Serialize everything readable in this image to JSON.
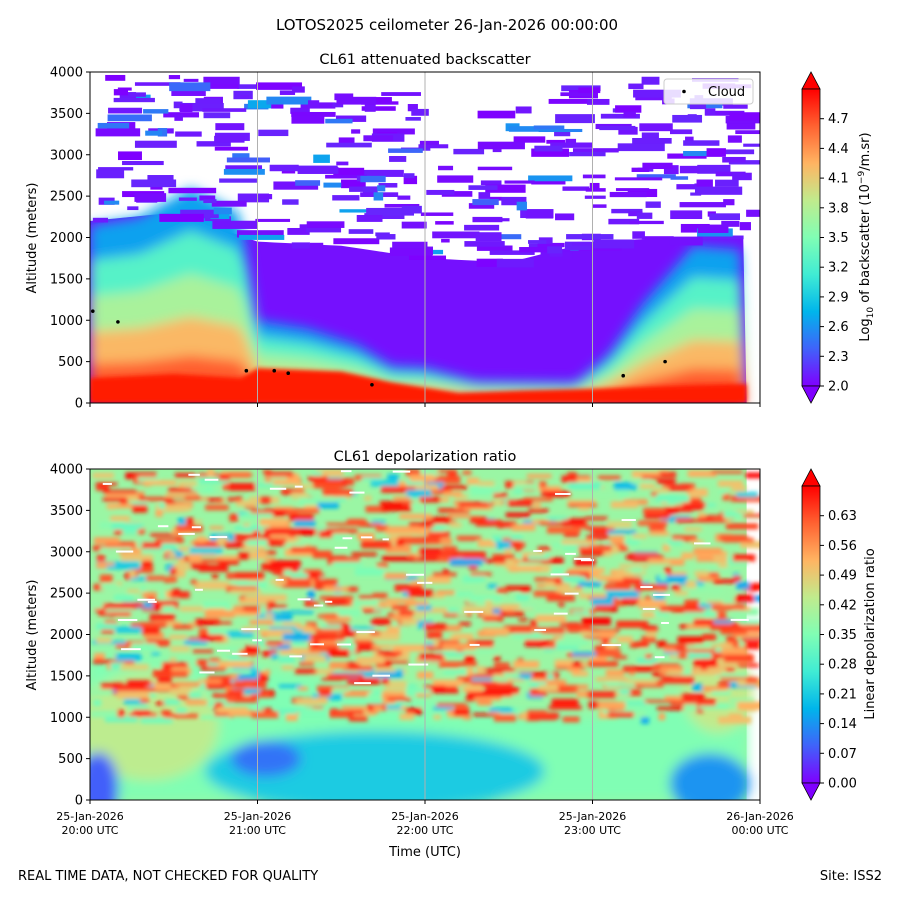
{
  "figure": {
    "suptitle": "LOTOS2025 ceilometer 26-Jan-2026 00:00:00",
    "footer_left": "REAL TIME DATA, NOT CHECKED FOR QUALITY",
    "footer_right": "Site: ISS2"
  },
  "chart_data": [
    {
      "type": "heatmap",
      "title": "CL61 attenuated backscatter",
      "ylabel": "Altitude (meters)",
      "xlabel": "",
      "ylim": [
        0,
        4000
      ],
      "xlim": [
        "25-Jan-2026 20:00 UTC",
        "26-Jan-2026 00:00 UTC"
      ],
      "yticks": [
        0,
        500,
        1000,
        1500,
        2000,
        2500,
        3000,
        3500,
        4000
      ],
      "xticks": [
        "25-Jan-2026 20:00 UTC",
        "25-Jan-2026 21:00 UTC",
        "25-Jan-2026 22:00 UTC",
        "25-Jan-2026 23:00 UTC",
        "26-Jan-2026 00:00 UTC"
      ],
      "vertical_grid": true,
      "colorbar": {
        "label_main": "Log",
        "label_sub": "10",
        "label_rest": " of backscatter (10",
        "label_sup": "−9",
        "label_end": "/m.sr)",
        "vmin": 2.0,
        "vmax": 5.0,
        "ticks": [
          "2.0",
          "2.3",
          "2.6",
          "2.9",
          "3.2",
          "3.5",
          "3.8",
          "4.1",
          "4.4",
          "4.7"
        ],
        "extend": "both",
        "colormap": "rainbow"
      },
      "legend": {
        "position": "top-right",
        "entries": [
          {
            "name": "Cloud",
            "marker": "dot",
            "color": "#000000"
          }
        ]
      },
      "cloud_base_points": [
        {
          "time": "20:01",
          "altitude": 1110
        },
        {
          "time": "20:10",
          "altitude": 980
        },
        {
          "time": "20:56",
          "altitude": 390
        },
        {
          "time": "21:06",
          "altitude": 390
        },
        {
          "time": "21:11",
          "altitude": 360
        },
        {
          "time": "21:41",
          "altitude": 220
        },
        {
          "time": "23:11",
          "altitude": 330
        },
        {
          "time": "23:26",
          "altitude": 500
        }
      ],
      "profile_description_series": [
        {
          "name": "surface_layer_top",
          "times_h": [
            0,
            0.3,
            0.6,
            0.9,
            1.0,
            1.3,
            1.6,
            1.8,
            2.0,
            2.3,
            2.6,
            2.9,
            3.1,
            3.3,
            3.6,
            3.9
          ],
          "altitude": [
            2150,
            2250,
            2600,
            2300,
            1000,
            900,
            700,
            450,
            430,
            270,
            260,
            250,
            600,
            1200,
            1900,
            1850
          ]
        },
        {
          "name": "sky_fill_top",
          "times_h": [
            0,
            0.5,
            1.0,
            1.5,
            2.0,
            2.5,
            3.0,
            3.5,
            3.95
          ],
          "altitude": [
            2200,
            2300,
            1950,
            1900,
            1750,
            1700,
            1950,
            2000,
            2000
          ]
        }
      ]
    },
    {
      "type": "heatmap",
      "title": "CL61 depolarization ratio",
      "ylabel": "Altitude (meters)",
      "xlabel": "Time (UTC)",
      "ylim": [
        0,
        4000
      ],
      "xlim": [
        "25-Jan-2026 20:00 UTC",
        "26-Jan-2026 00:00 UTC"
      ],
      "yticks": [
        0,
        500,
        1000,
        1500,
        2000,
        2500,
        3000,
        3500,
        4000
      ],
      "xticks": [
        "25-Jan-2026 20:00 UTC",
        "25-Jan-2026 21:00 UTC",
        "25-Jan-2026 22:00 UTC",
        "25-Jan-2026 23:00 UTC",
        "26-Jan-2026 00:00 UTC"
      ],
      "xtick_labels": [
        [
          "25-Jan-2026",
          "20:00 UTC"
        ],
        [
          "25-Jan-2026",
          "21:00 UTC"
        ],
        [
          "25-Jan-2026",
          "22:00 UTC"
        ],
        [
          "25-Jan-2026",
          "23:00 UTC"
        ],
        [
          "26-Jan-2026",
          "00:00 UTC"
        ]
      ],
      "vertical_grid": true,
      "colorbar": {
        "label": "Linear depolarization ratio",
        "vmin": 0.0,
        "vmax": 0.7,
        "ticks": [
          "0.00",
          "0.07",
          "0.14",
          "0.21",
          "0.28",
          "0.35",
          "0.42",
          "0.49",
          "0.56",
          "0.63"
        ],
        "extend": "both",
        "colormap": "rainbow"
      }
    }
  ]
}
